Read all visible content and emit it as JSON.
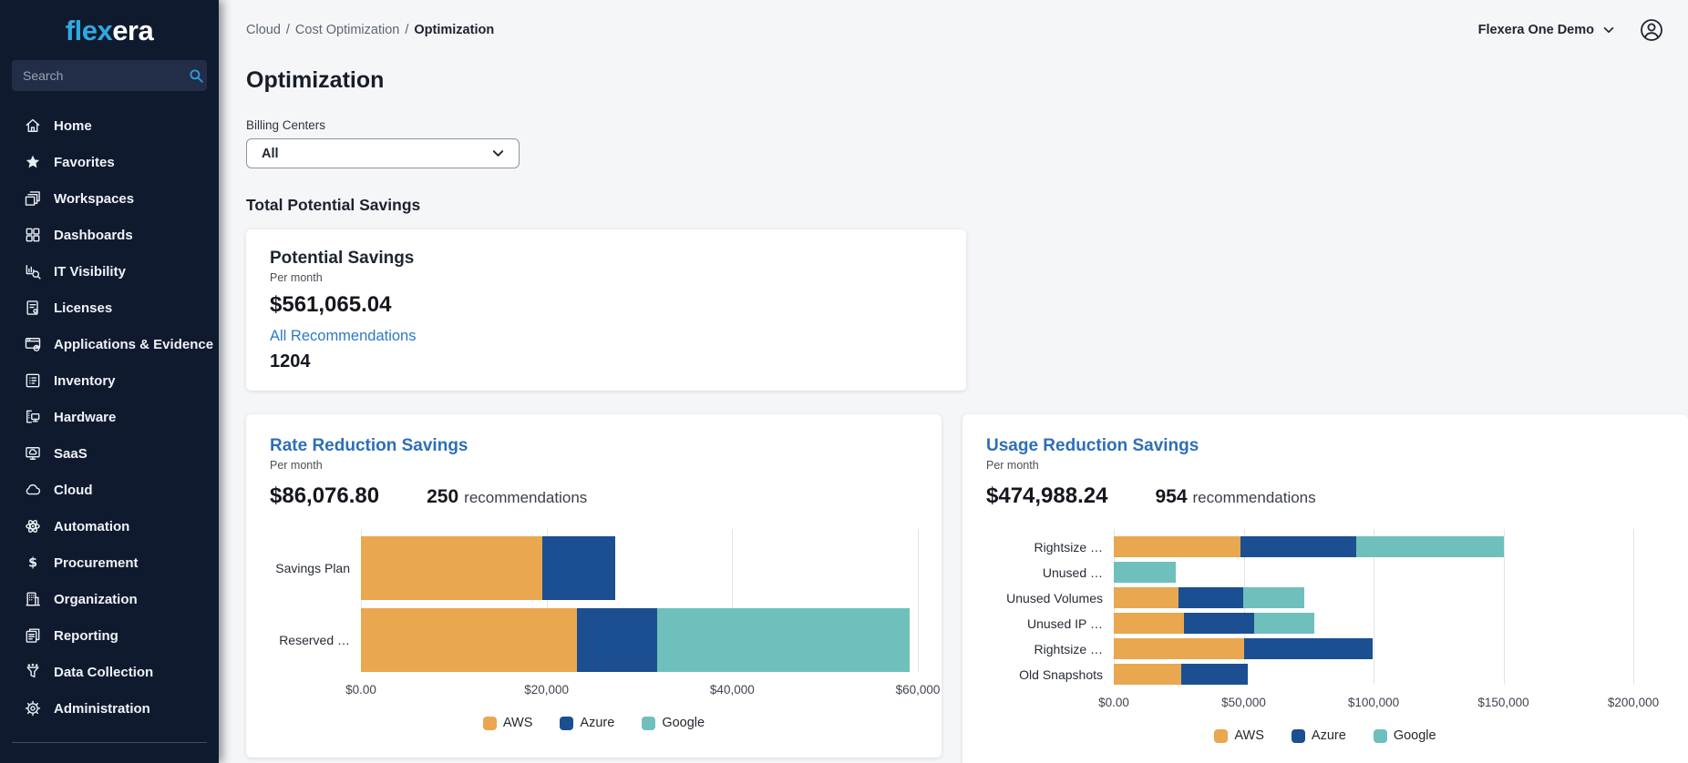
{
  "sidebar": {
    "logo_flex": "flex",
    "logo_era": "era",
    "search_placeholder": "Search",
    "items": [
      {
        "label": "Home",
        "icon": "home"
      },
      {
        "label": "Favorites",
        "icon": "favorites"
      },
      {
        "label": "Workspaces",
        "icon": "workspaces"
      },
      {
        "label": "Dashboards",
        "icon": "dashboards"
      },
      {
        "label": "IT Visibility",
        "icon": "it-visibility"
      },
      {
        "label": "Licenses",
        "icon": "licenses"
      },
      {
        "label": "Applications & Evidence",
        "icon": "applications-evidence"
      },
      {
        "label": "Inventory",
        "icon": "inventory"
      },
      {
        "label": "Hardware",
        "icon": "hardware"
      },
      {
        "label": "SaaS",
        "icon": "saas"
      },
      {
        "label": "Cloud",
        "icon": "cloud"
      },
      {
        "label": "Automation",
        "icon": "automation"
      },
      {
        "label": "Procurement",
        "icon": "procurement"
      },
      {
        "label": "Organization",
        "icon": "organization"
      },
      {
        "label": "Reporting",
        "icon": "reporting"
      },
      {
        "label": "Data Collection",
        "icon": "data-collection"
      },
      {
        "label": "Administration",
        "icon": "administration"
      }
    ]
  },
  "header": {
    "breadcrumb": [
      "Cloud",
      "Cost Optimization",
      "Optimization"
    ],
    "tenant": "Flexera One Demo"
  },
  "page": {
    "title": "Optimization",
    "billing_centers": {
      "label": "Billing Centers",
      "value": "All"
    },
    "section_heading": "Total Potential Savings"
  },
  "summary_card": {
    "title": "Potential Savings",
    "period": "Per month",
    "amount": "$561,065.04",
    "link_label": "All Recommendations",
    "count": "1204"
  },
  "colors": {
    "accent_blue": "#2D6FB7",
    "link_blue": "#2D79C7",
    "logo_blue": "#2FA9E1",
    "sidebar_bg": "#0F1A2E",
    "aws": "#E9A750",
    "azure": "#1B4F91",
    "google": "#6FBFBC"
  },
  "chart_data": [
    {
      "type": "bar",
      "orientation": "horizontal",
      "stacked": true,
      "title": "Rate Reduction Savings",
      "period": "Per month",
      "amount": "$86,076.80",
      "recommendations": 250,
      "recommendations_label": "recommendations",
      "categories": [
        "Savings Plan",
        "Reserved …"
      ],
      "series": [
        {
          "name": "AWS",
          "color": "#E9A750",
          "values": [
            19500,
            23300
          ]
        },
        {
          "name": "Azure",
          "color": "#1B4F91",
          "values": [
            7900,
            8600
          ]
        },
        {
          "name": "Google",
          "color": "#6FBFBC",
          "values": [
            0,
            27200
          ]
        }
      ],
      "xlim": [
        0,
        60000
      ],
      "xtick_values": [
        0,
        20000,
        40000,
        60000
      ],
      "xticks": [
        "$0.00",
        "$20,000",
        "$40,000",
        "$60,000"
      ],
      "grid": true,
      "legend": [
        "AWS",
        "Azure",
        "Google"
      ],
      "legend_position": "bottom"
    },
    {
      "type": "bar",
      "orientation": "horizontal",
      "stacked": true,
      "title": "Usage Reduction Savings",
      "period": "Per month",
      "amount": "$474,988.24",
      "recommendations": 954,
      "recommendations_label": "recommendations",
      "categories": [
        "Rightsize …",
        "Unused …",
        "Unused Volumes",
        "Unused IP …",
        "Rightsize …",
        "Old Snapshots"
      ],
      "series": [
        {
          "name": "AWS",
          "color": "#E9A750",
          "values": [
            48700,
            0,
            24800,
            26900,
            50000,
            26100
          ]
        },
        {
          "name": "Azure",
          "color": "#1B4F91",
          "values": [
            44500,
            0,
            25200,
            27300,
            49500,
            25500
          ]
        },
        {
          "name": "Google",
          "color": "#6FBFBC",
          "values": [
            57000,
            24000,
            23400,
            23000,
            0,
            0
          ]
        }
      ],
      "xlim": [
        0,
        200000
      ],
      "xtick_values": [
        0,
        50000,
        100000,
        150000,
        200000
      ],
      "xticks": [
        "$0.00",
        "$50,000",
        "$100,000",
        "$150,000",
        "$200,000"
      ],
      "grid": true,
      "legend": [
        "AWS",
        "Azure",
        "Google"
      ],
      "legend_position": "bottom"
    }
  ]
}
